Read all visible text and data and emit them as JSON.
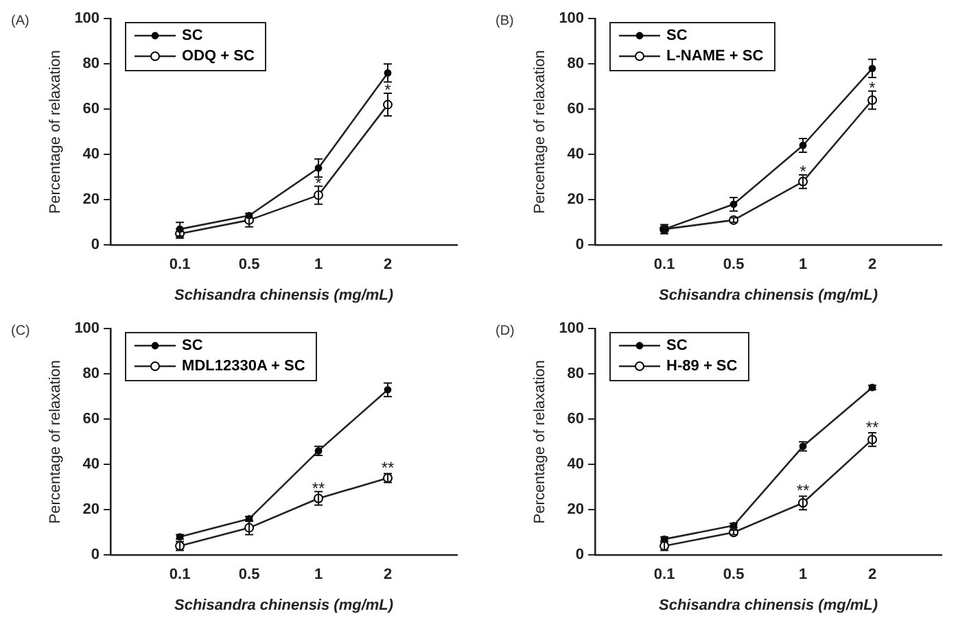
{
  "chart_data": [
    {
      "type": "line",
      "title": "(A)",
      "xlabel": "Schisandra chinensis (mg/mL)",
      "ylabel": "Percentage of relaxation",
      "categories": [
        "0.1",
        "0.5",
        "1",
        "2"
      ],
      "ylim": [
        0,
        100
      ],
      "yticks": [
        0,
        20,
        40,
        60,
        80,
        100
      ],
      "grid": false,
      "legend": "top left",
      "marker": "circle",
      "line_style": "solid",
      "series": [
        {
          "name": "SC",
          "color": "#000000",
          "values": [
            7,
            13,
            34,
            76
          ],
          "errors": [
            3,
            1,
            4,
            4
          ]
        },
        {
          "name": "ODQ + SC",
          "color": "#ffffff",
          "values": [
            5,
            11,
            22,
            62
          ],
          "errors": [
            2,
            3,
            4,
            5
          ]
        }
      ],
      "annotations": [
        {
          "text": "*",
          "x": "1",
          "y": 27
        },
        {
          "text": "*",
          "x": "2",
          "y": 68
        }
      ]
    },
    {
      "type": "line",
      "title": "(B)",
      "xlabel": "Schisandra chinensis (mg/mL)",
      "ylabel": "Percentage of relaxation",
      "categories": [
        "0.1",
        "0.5",
        "1",
        "2"
      ],
      "ylim": [
        0,
        100
      ],
      "yticks": [
        0,
        20,
        40,
        60,
        80,
        100
      ],
      "grid": false,
      "legend": "top left",
      "marker": "circle",
      "line_style": "solid",
      "series": [
        {
          "name": "SC",
          "color": "#000000",
          "values": [
            7,
            18,
            44,
            78
          ],
          "errors": [
            1,
            3,
            3,
            4
          ]
        },
        {
          "name": "L-NAME + SC",
          "color": "#ffffff",
          "values": [
            7,
            11,
            28,
            64
          ],
          "errors": [
            2,
            1,
            3,
            4
          ]
        }
      ],
      "annotations": [
        {
          "text": "*",
          "x": "1",
          "y": 32
        },
        {
          "text": "*",
          "x": "2",
          "y": 69
        }
      ]
    },
    {
      "type": "line",
      "title": "(C)",
      "xlabel": "Schisandra chinensis (mg/mL)",
      "ylabel": "Percentage of relaxation",
      "categories": [
        "0.1",
        "0.5",
        "1",
        "2"
      ],
      "ylim": [
        0,
        100
      ],
      "yticks": [
        0,
        20,
        40,
        60,
        80,
        100
      ],
      "grid": false,
      "legend": "top left",
      "marker": "circle",
      "line_style": "solid",
      "series": [
        {
          "name": "SC",
          "color": "#000000",
          "values": [
            8,
            16,
            46,
            73
          ],
          "errors": [
            1,
            1,
            2,
            3
          ]
        },
        {
          "name": "MDL12330A + SC",
          "color": "#ffffff",
          "values": [
            4,
            12,
            25,
            34
          ],
          "errors": [
            2,
            3,
            3,
            2
          ]
        }
      ],
      "annotations": [
        {
          "text": "**",
          "x": "1",
          "y": 29
        },
        {
          "text": "**",
          "x": "2",
          "y": 38
        }
      ]
    },
    {
      "type": "line",
      "title": "(D)",
      "xlabel": "Schisandra chinensis (mg/mL)",
      "ylabel": "Percentage of relaxation",
      "categories": [
        "0.1",
        "0.5",
        "1",
        "2"
      ],
      "ylim": [
        0,
        100
      ],
      "yticks": [
        0,
        20,
        40,
        60,
        80,
        100
      ],
      "grid": false,
      "legend": "top left",
      "marker": "circle",
      "line_style": "solid",
      "series": [
        {
          "name": "SC",
          "color": "#000000",
          "values": [
            7,
            13,
            48,
            74
          ],
          "errors": [
            1,
            1,
            2,
            1
          ]
        },
        {
          "name": "H-89 + SC",
          "color": "#ffffff",
          "values": [
            4,
            10,
            23,
            51
          ],
          "errors": [
            2,
            1,
            3,
            3
          ]
        }
      ],
      "annotations": [
        {
          "text": "**",
          "x": "1",
          "y": 28
        },
        {
          "text": "**",
          "x": "2",
          "y": 56
        }
      ]
    }
  ]
}
